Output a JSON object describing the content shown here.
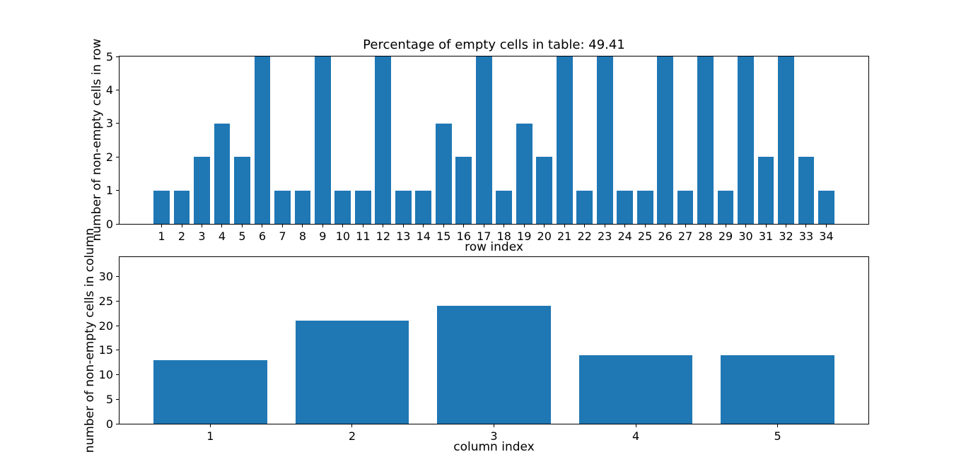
{
  "figure": {
    "background_color": "#ffffff",
    "bar_color": "#1f77b4",
    "axis_color": "#000000",
    "text_color": "#000000"
  },
  "chart_data": [
    {
      "id": "rows-chart",
      "type": "bar",
      "title": "Percentage of empty cells in table: 49.41",
      "xlabel": "row index",
      "ylabel": "number of non-empty cells in row",
      "categories": [
        "1",
        "2",
        "3",
        "4",
        "5",
        "6",
        "7",
        "8",
        "9",
        "10",
        "11",
        "12",
        "13",
        "14",
        "15",
        "16",
        "17",
        "18",
        "19",
        "20",
        "21",
        "22",
        "23",
        "24",
        "25",
        "26",
        "27",
        "28",
        "29",
        "30",
        "31",
        "32",
        "33",
        "34"
      ],
      "values": [
        1,
        1,
        2,
        3,
        2,
        5,
        1,
        1,
        5,
        1,
        1,
        5,
        1,
        1,
        3,
        2,
        5,
        1,
        3,
        2,
        5,
        1,
        5,
        1,
        1,
        5,
        1,
        5,
        1,
        5,
        2,
        5,
        2,
        1
      ],
      "xlim": [
        -1.09,
        36.09
      ],
      "ylim": [
        0,
        5
      ],
      "yticks": [
        0,
        1,
        2,
        3,
        4,
        5
      ],
      "bar_width": 0.8,
      "grid": false,
      "legend_position": "none"
    },
    {
      "id": "columns-chart",
      "type": "bar",
      "title": "",
      "xlabel": "column index",
      "ylabel": "number of non-empty cells in column",
      "categories": [
        "1",
        "2",
        "3",
        "4",
        "5"
      ],
      "values": [
        13,
        21,
        24,
        14,
        14
      ],
      "xlim": [
        0.36,
        5.64
      ],
      "ylim": [
        0,
        34
      ],
      "yticks": [
        0,
        5,
        10,
        15,
        20,
        25,
        30
      ],
      "bar_width": 0.8,
      "grid": false,
      "legend_position": "none"
    }
  ]
}
